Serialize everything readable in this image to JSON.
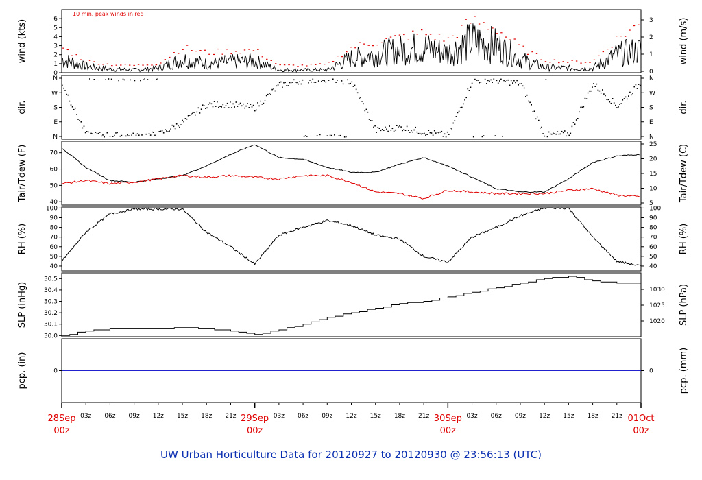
{
  "title": "UW Urban Horticulture Data for 20120927  to  20120930 @ 23:56:13  (UTC)",
  "x_ticks": [
    "03z",
    "06z",
    "09z",
    "12z",
    "15z",
    "18z",
    "21z",
    "03z",
    "06z",
    "09z",
    "12z",
    "15z",
    "18z",
    "21z",
    "03z",
    "06z",
    "09z",
    "12z",
    "15z",
    "18z",
    "21z"
  ],
  "x_day_labels": [
    {
      "day": "28Sep",
      "hour": "00z"
    },
    {
      "day": "29Sep",
      "hour": "00z"
    },
    {
      "day": "30Sep",
      "hour": "00z"
    },
    {
      "day": "01Oct",
      "hour": "00z"
    }
  ],
  "colors": {
    "temp": "#000000",
    "dew": "#e00000",
    "peak": "#e00000",
    "pcp": "#2222cc",
    "title": "#0a2fb0",
    "day": "#e00000"
  },
  "chart_data": [
    {
      "type": "line",
      "name": "wind",
      "ylabel": "wind (kts)",
      "ylabel_right": "wind (m/s)",
      "annotation": "10 min. peak winds in red",
      "ylim": [
        0,
        7
      ],
      "yticks": [
        "0",
        "1",
        "2",
        "3",
        "4",
        "5",
        "6"
      ],
      "yticks_right": [
        "0",
        "1",
        "2",
        "3"
      ],
      "x_hours": [
        0,
        3,
        6,
        9,
        12,
        15,
        18,
        21,
        24,
        27,
        30,
        33,
        36,
        39,
        42,
        45,
        48,
        51,
        54,
        57,
        60,
        63,
        66,
        69,
        72
      ],
      "series": [
        {
          "values": [
            1.5,
            0.7,
            0.4,
            0.3,
            0.5,
            1.5,
            1.0,
            1.2,
            1.3,
            0.3,
            0.3,
            0.3,
            1.6,
            2.0,
            2.5,
            2.8,
            2.2,
            3.5,
            3.0,
            1.5,
            0.6,
            0.5,
            0.5,
            2.0,
            2.5
          ]
        },
        {
          "values": [
            2.8,
            1.3,
            0.9,
            0.8,
            1.0,
            2.8,
            2.2,
            2.4,
            2.5,
            0.8,
            0.8,
            0.9,
            2.8,
            3.4,
            3.9,
            4.4,
            3.6,
            5.8,
            4.9,
            2.8,
            1.4,
            1.2,
            1.2,
            3.8,
            5.4
          ]
        }
      ]
    },
    {
      "type": "scatter",
      "name": "dir",
      "ylabel": "dir.",
      "ylabel_right": "dir.",
      "yticks": [
        "N",
        "E",
        "S",
        "W",
        "N"
      ],
      "yticks_right": [
        "N",
        "E",
        "S",
        "W",
        "N"
      ],
      "x_hours": [
        0,
        3,
        6,
        9,
        12,
        15,
        18,
        21,
        24,
        27,
        30,
        33,
        36,
        39,
        42,
        45,
        48,
        51,
        54,
        57,
        60,
        63,
        66,
        69,
        72
      ],
      "values": [
        330,
        15,
        10,
        5,
        15,
        90,
        200,
        200,
        180,
        320,
        350,
        360,
        340,
        40,
        60,
        30,
        10,
        350,
        350,
        330,
        10,
        20,
        330,
        190,
        340
      ]
    },
    {
      "type": "line",
      "name": "temp",
      "ylabel": "Tair/Tdew (F)",
      "ylabel_right": "Tair/Tdew (C)",
      "ylim": [
        38,
        77
      ],
      "yticks": [
        "40",
        "50",
        "60",
        "70"
      ],
      "yticks_right": [
        "5",
        "10",
        "15",
        "20",
        "25"
      ],
      "x_hours": [
        0,
        3,
        6,
        9,
        12,
        15,
        18,
        21,
        24,
        27,
        30,
        33,
        36,
        39,
        42,
        45,
        48,
        51,
        54,
        57,
        60,
        63,
        66,
        69,
        72
      ],
      "series": [
        {
          "values": [
            73,
            61,
            53,
            52,
            54,
            56,
            62,
            69,
            75,
            67,
            66,
            61,
            58,
            58,
            63,
            67,
            62,
            55,
            48,
            46,
            46,
            54,
            64,
            68,
            69
          ]
        },
        {
          "values": [
            51,
            53,
            51,
            52,
            54,
            56,
            55,
            56,
            55,
            54,
            56,
            56,
            52,
            46,
            45,
            42,
            47,
            46,
            45,
            45,
            45,
            47,
            48,
            44,
            43
          ]
        }
      ]
    },
    {
      "type": "line",
      "name": "rh",
      "ylabel": "RH (%)",
      "ylabel_right": "RH (%)",
      "ylim": [
        35,
        101
      ],
      "yticks": [
        "40",
        "50",
        "60",
        "70",
        "80",
        "90",
        "100"
      ],
      "yticks_right": [
        "40",
        "50",
        "60",
        "70",
        "80",
        "90",
        "100"
      ],
      "x_hours": [
        0,
        3,
        6,
        9,
        12,
        15,
        18,
        21,
        24,
        27,
        30,
        33,
        36,
        39,
        42,
        45,
        48,
        51,
        54,
        57,
        60,
        63,
        66,
        69,
        72
      ],
      "values": [
        45,
        75,
        94,
        99,
        99,
        99,
        75,
        60,
        42,
        72,
        80,
        87,
        82,
        72,
        68,
        50,
        44,
        70,
        80,
        92,
        100,
        100,
        70,
        45,
        40
      ]
    },
    {
      "type": "line",
      "name": "slp",
      "ylabel": "SLP (inHg)",
      "ylabel_right": "SLP (hPa)",
      "ylim": [
        29.99,
        30.55
      ],
      "yticks": [
        "30.0",
        "30.1",
        "30.2",
        "30.3",
        "30.4",
        "30.5"
      ],
      "yticks_right": [
        "1020",
        "1025",
        "1030"
      ],
      "x_hours": [
        0,
        3,
        6,
        9,
        12,
        15,
        18,
        21,
        24,
        27,
        30,
        33,
        36,
        39,
        42,
        45,
        48,
        51,
        54,
        57,
        60,
        63,
        66,
        69,
        72
      ],
      "values": [
        30.0,
        30.04,
        30.06,
        30.06,
        30.06,
        30.07,
        30.06,
        30.04,
        30.01,
        30.05,
        30.1,
        30.16,
        30.2,
        30.24,
        30.28,
        30.3,
        30.34,
        30.38,
        30.42,
        30.46,
        30.5,
        30.52,
        30.48,
        30.46,
        30.46
      ]
    },
    {
      "type": "line",
      "name": "pcp",
      "ylabel": "pcp. (in)",
      "ylabel_right": "pcp. (mm)",
      "yticks": [
        "0"
      ],
      "yticks_right": [
        "0"
      ],
      "x_hours": [
        0,
        72
      ],
      "values": [
        0,
        0
      ]
    }
  ]
}
